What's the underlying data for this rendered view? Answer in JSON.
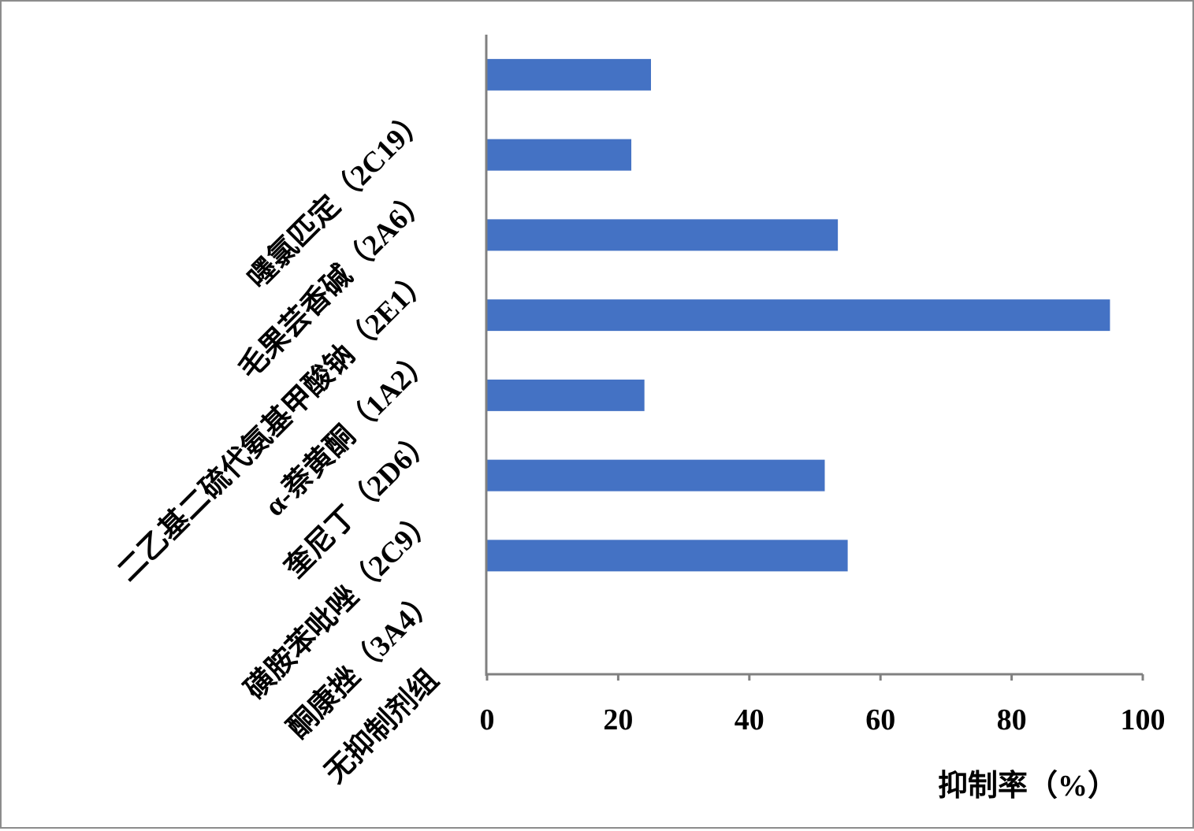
{
  "chart_data": {
    "type": "bar",
    "orientation": "horizontal",
    "categories": [
      "嚜氯匹定（2C19）",
      "毛果芸香碱（2A6）",
      "二乙基二硫代氨基甲酸钠（2E1）",
      "α-萘黄酮（1A2）",
      "奎尼丁（2D6）",
      "磺胺苯吡唑（2C9）",
      "酮康挫（3A4）",
      "无抑制剂组"
    ],
    "values": [
      25,
      22,
      53.5,
      95,
      24,
      51.5,
      55,
      0
    ],
    "xlabel": "抑制率（%）",
    "ylabel": "",
    "xlim": [
      0,
      100
    ],
    "xticks": [
      "0",
      "20",
      "40",
      "60",
      "80",
      "100"
    ],
    "grid": false,
    "legend": "none",
    "bar_color": "#4472c4",
    "axis_color": "#808080"
  }
}
